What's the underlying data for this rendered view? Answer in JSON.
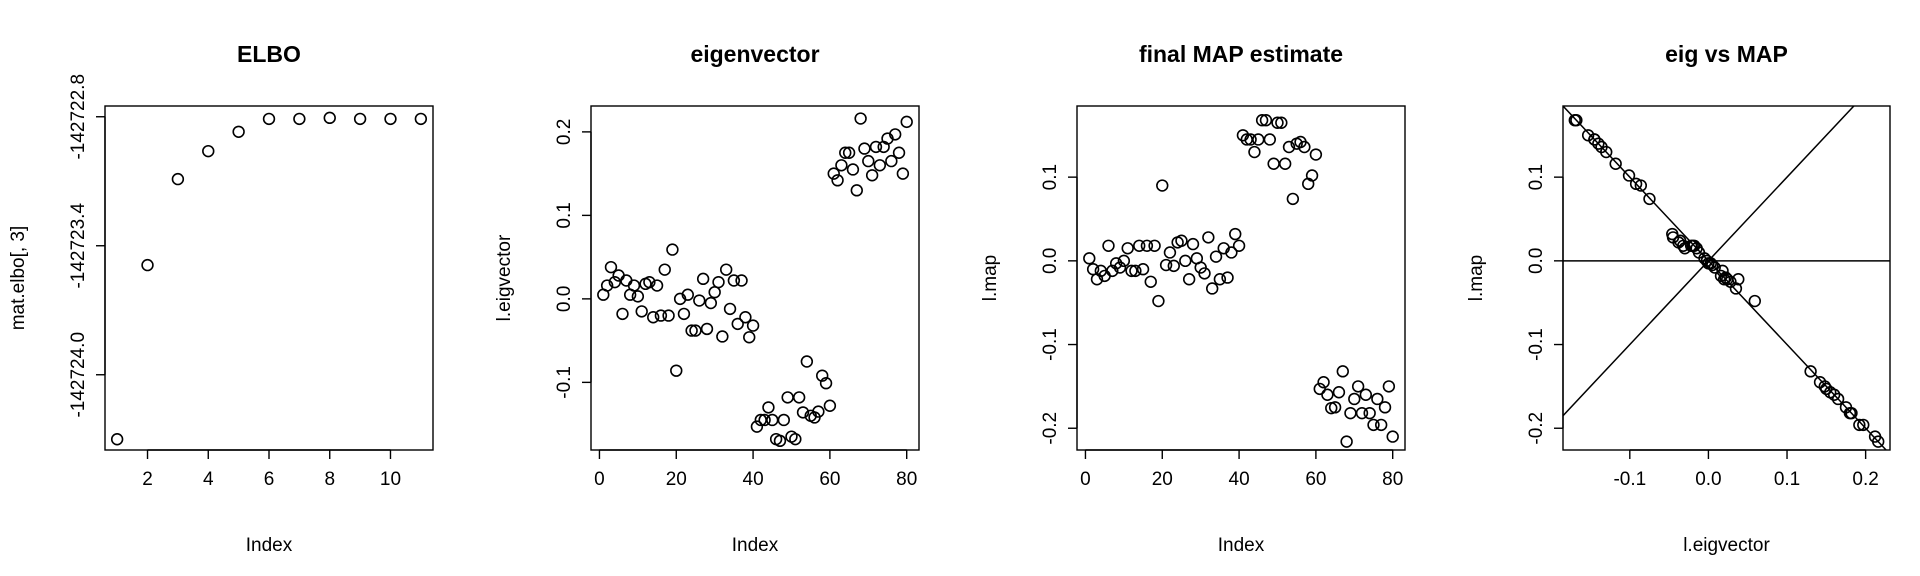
{
  "chart_data": [
    {
      "type": "scatter",
      "title": "ELBO",
      "xlabel": "Index",
      "ylabel": "mat.elbo[, 3]",
      "xlim": [
        0.6,
        11.4
      ],
      "ylim": [
        -142724.35,
        -142722.75
      ],
      "xticks": [
        2,
        4,
        6,
        8,
        10
      ],
      "yticks": [
        -142724.0,
        -142723.4,
        -142722.8
      ],
      "xtick_labels": [
        "2",
        "4",
        "6",
        "8",
        "10"
      ],
      "ytick_labels": [
        "-142724.0",
        "-142723.4",
        "-142722.8"
      ],
      "x": [
        1,
        2,
        3,
        4,
        5,
        6,
        7,
        8,
        9,
        10,
        11
      ],
      "y": [
        -142724.3,
        -142723.49,
        -142723.09,
        -142722.96,
        -142722.87,
        -142722.81,
        -142722.81,
        -142722.805,
        -142722.81,
        -142722.81,
        -142722.81
      ],
      "ref_lines": []
    },
    {
      "type": "scatter",
      "title": "eigenvector",
      "xlabel": "Index",
      "ylabel": "l.eigvector",
      "xlim": [
        -2.2,
        83.2
      ],
      "ylim": [
        -0.181,
        0.231
      ],
      "xticks": [
        0,
        20,
        40,
        60,
        80
      ],
      "yticks": [
        -0.1,
        0.0,
        0.1,
        0.2
      ],
      "xtick_labels": [
        "0",
        "20",
        "40",
        "60",
        "80"
      ],
      "ytick_labels": [
        "-0.1",
        "0.0",
        "0.1",
        "0.2"
      ],
      "x": [
        1,
        2,
        3,
        4,
        5,
        6,
        7,
        8,
        9,
        10,
        11,
        12,
        13,
        14,
        15,
        16,
        17,
        18,
        19,
        20,
        21,
        22,
        23,
        24,
        25,
        26,
        27,
        28,
        29,
        30,
        31,
        32,
        33,
        34,
        35,
        36,
        37,
        38,
        39,
        40,
        41,
        42,
        43,
        44,
        45,
        46,
        47,
        48,
        49,
        50,
        51,
        52,
        53,
        54,
        55,
        56,
        57,
        58,
        59,
        60,
        61,
        62,
        63,
        64,
        65,
        66,
        67,
        68,
        69,
        70,
        71,
        72,
        73,
        74,
        75,
        76,
        77,
        78,
        79,
        80
      ],
      "y": [
        0.005,
        0.016,
        0.038,
        0.02,
        0.028,
        -0.018,
        0.022,
        0.005,
        0.016,
        0.003,
        -0.015,
        0.018,
        0.02,
        -0.022,
        0.016,
        -0.02,
        0.035,
        -0.02,
        0.059,
        -0.086,
        0.0,
        -0.018,
        0.005,
        -0.038,
        -0.038,
        -0.002,
        0.024,
        -0.036,
        -0.005,
        0.008,
        0.02,
        -0.045,
        0.035,
        -0.012,
        0.022,
        -0.03,
        0.022,
        -0.022,
        -0.046,
        -0.032,
        -0.153,
        -0.145,
        -0.145,
        -0.13,
        -0.145,
        -0.168,
        -0.17,
        -0.145,
        -0.118,
        -0.165,
        -0.168,
        -0.118,
        -0.136,
        -0.075,
        -0.14,
        -0.142,
        -0.135,
        -0.092,
        -0.101,
        -0.128,
        0.15,
        0.142,
        0.16,
        0.175,
        0.175,
        0.155,
        0.13,
        0.216,
        0.18,
        0.165,
        0.148,
        0.182,
        0.16,
        0.182,
        0.192,
        0.165,
        0.197,
        0.175,
        0.15,
        0.212
      ],
      "ref_lines": []
    },
    {
      "type": "scatter",
      "title": "final MAP estimate",
      "xlabel": "Index",
      "ylabel": "l.map",
      "xlim": [
        -2.2,
        83.2
      ],
      "ylim": [
        -0.226,
        0.185
      ],
      "xticks": [
        0,
        20,
        40,
        60,
        80
      ],
      "yticks": [
        -0.2,
        -0.1,
        0.0,
        0.1
      ],
      "xtick_labels": [
        "0",
        "20",
        "40",
        "60",
        "80"
      ],
      "ytick_labels": [
        "-0.2",
        "-0.1",
        "0.0",
        "0.1"
      ],
      "x": [
        1,
        2,
        3,
        4,
        5,
        6,
        7,
        8,
        9,
        10,
        11,
        12,
        13,
        14,
        15,
        16,
        17,
        18,
        19,
        20,
        21,
        22,
        23,
        24,
        25,
        26,
        27,
        28,
        29,
        30,
        31,
        32,
        33,
        34,
        35,
        36,
        37,
        38,
        39,
        40,
        41,
        42,
        43,
        44,
        45,
        46,
        47,
        48,
        49,
        50,
        51,
        52,
        53,
        54,
        55,
        56,
        57,
        58,
        59,
        60,
        61,
        62,
        63,
        64,
        65,
        66,
        67,
        68,
        69,
        70,
        71,
        72,
        73,
        74,
        75,
        76,
        77,
        78,
        79,
        80
      ],
      "y": [
        0.003,
        -0.01,
        -0.022,
        -0.012,
        -0.018,
        0.018,
        -0.012,
        -0.003,
        -0.008,
        0.0,
        0.015,
        -0.012,
        -0.012,
        0.018,
        -0.01,
        0.018,
        -0.025,
        0.018,
        -0.048,
        0.09,
        -0.005,
        0.01,
        -0.006,
        0.022,
        0.024,
        0.0,
        -0.022,
        0.02,
        0.003,
        -0.008,
        -0.015,
        0.028,
        -0.033,
        0.005,
        -0.022,
        0.015,
        -0.02,
        0.01,
        0.032,
        0.018,
        0.15,
        0.145,
        0.145,
        0.13,
        0.145,
        0.168,
        0.168,
        0.145,
        0.116,
        0.165,
        0.165,
        0.116,
        0.136,
        0.074,
        0.14,
        0.142,
        0.136,
        0.092,
        0.102,
        0.127,
        -0.153,
        -0.145,
        -0.16,
        -0.176,
        -0.175,
        -0.157,
        -0.132,
        -0.216,
        -0.182,
        -0.165,
        -0.15,
        -0.182,
        -0.16,
        -0.182,
        -0.196,
        -0.165,
        -0.196,
        -0.175,
        -0.15,
        -0.21
      ],
      "ref_lines": []
    },
    {
      "type": "scatter",
      "title": "eig vs MAP",
      "xlabel": "l.eigvector",
      "ylabel": "l.map",
      "xlim": [
        -0.185,
        0.231
      ],
      "ylim": [
        -0.226,
        0.185
      ],
      "xticks": [
        -0.1,
        0.0,
        0.1,
        0.2
      ],
      "yticks": [
        -0.2,
        -0.1,
        0.0,
        0.1
      ],
      "xtick_labels": [
        "-0.1",
        "0.0",
        "0.1",
        "0.2"
      ],
      "ytick_labels": [
        "-0.2",
        "-0.1",
        "0.0",
        "0.1"
      ],
      "x": [
        -0.17,
        -0.168,
        -0.153,
        -0.145,
        -0.145,
        -0.14,
        -0.136,
        -0.13,
        -0.118,
        -0.101,
        -0.092,
        -0.086,
        -0.075,
        -0.046,
        -0.045,
        -0.038,
        -0.036,
        -0.032,
        -0.03,
        -0.022,
        -0.02,
        -0.018,
        -0.015,
        -0.012,
        -0.005,
        -0.002,
        0.0,
        0.003,
        0.005,
        0.008,
        0.016,
        0.018,
        0.02,
        0.022,
        0.024,
        0.028,
        0.035,
        0.038,
        0.059,
        0.13,
        0.142,
        0.148,
        0.15,
        0.155,
        0.16,
        0.165,
        0.175,
        0.18,
        0.182,
        0.192,
        0.197,
        0.212,
        0.216
      ],
      "y": [
        0.168,
        0.168,
        0.15,
        0.145,
        0.145,
        0.14,
        0.136,
        0.13,
        0.116,
        0.102,
        0.092,
        0.09,
        0.074,
        0.032,
        0.028,
        0.022,
        0.024,
        0.018,
        0.015,
        0.018,
        0.018,
        0.018,
        0.015,
        0.01,
        0.003,
        0.0,
        -0.003,
        -0.003,
        -0.005,
        -0.008,
        -0.018,
        -0.012,
        -0.022,
        -0.02,
        -0.022,
        -0.025,
        -0.033,
        -0.022,
        -0.048,
        -0.132,
        -0.145,
        -0.15,
        -0.153,
        -0.157,
        -0.16,
        -0.165,
        -0.175,
        -0.182,
        -0.182,
        -0.196,
        -0.196,
        -0.21,
        -0.216
      ],
      "ref_lines": [
        {
          "name": "identity-line",
          "slope": 1,
          "intercept": 0
        },
        {
          "name": "zero-horizontal-line",
          "slope": 0,
          "intercept": 0
        },
        {
          "name": "negative-identity-line",
          "slope": -1,
          "intercept": 0
        }
      ]
    }
  ]
}
